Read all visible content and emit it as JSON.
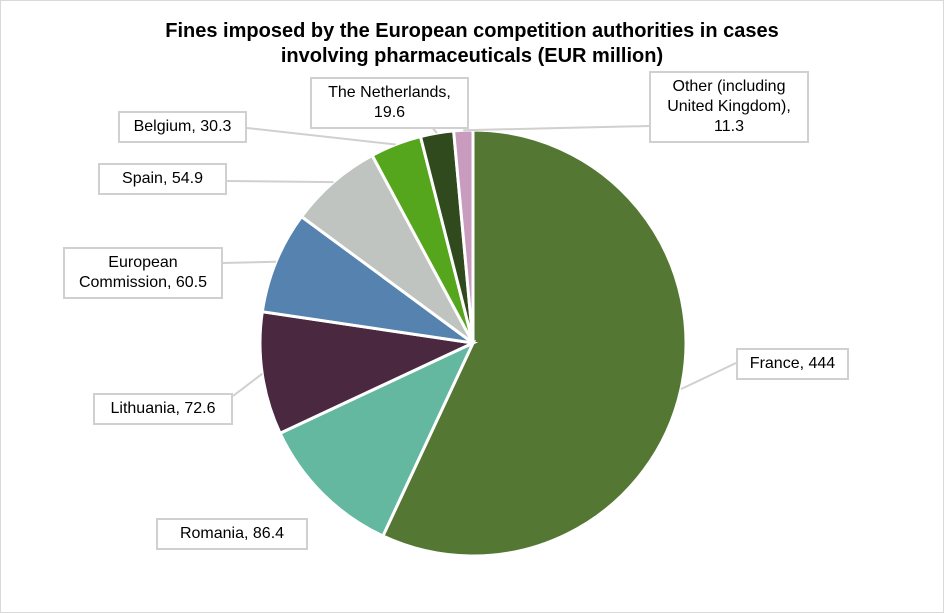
{
  "chart_data": {
    "type": "pie",
    "title": "Fines imposed by the European competition authorities in cases involving pharmaceuticals (EUR million)",
    "title_lines": [
      "Fines imposed by the European competition authorities in cases",
      "involving pharmaceuticals (EUR million)"
    ],
    "slices": [
      {
        "label": "France",
        "display": "France, 444",
        "value": 444,
        "color": "#547833"
      },
      {
        "label": "Romania",
        "display": "Romania, 86.4",
        "value": 86.4,
        "color": "#64b8a0"
      },
      {
        "label": "Lithuania",
        "display": "Lithuania,  72.6",
        "value": 72.6,
        "color": "#4a2940"
      },
      {
        "label": "European Commission",
        "display": "European Commission, 60.5",
        "value": 60.5,
        "color": "#5582ae"
      },
      {
        "label": "Spain",
        "display": "Spain, 54.9",
        "value": 54.9,
        "color": "#c0c4c1"
      },
      {
        "label": "Belgium",
        "display": "Belgium, 30.3",
        "value": 30.3,
        "color": "#55a61c"
      },
      {
        "label": "The Netherlands",
        "display": "The Netherlands, 19.6",
        "value": 19.6,
        "color": "#30491d"
      },
      {
        "label": "Other (including United Kingdom)",
        "display": "Other (including United Kingdom), 11.3",
        "value": 11.3,
        "color": "#c89bbf"
      }
    ],
    "legend": "none"
  }
}
